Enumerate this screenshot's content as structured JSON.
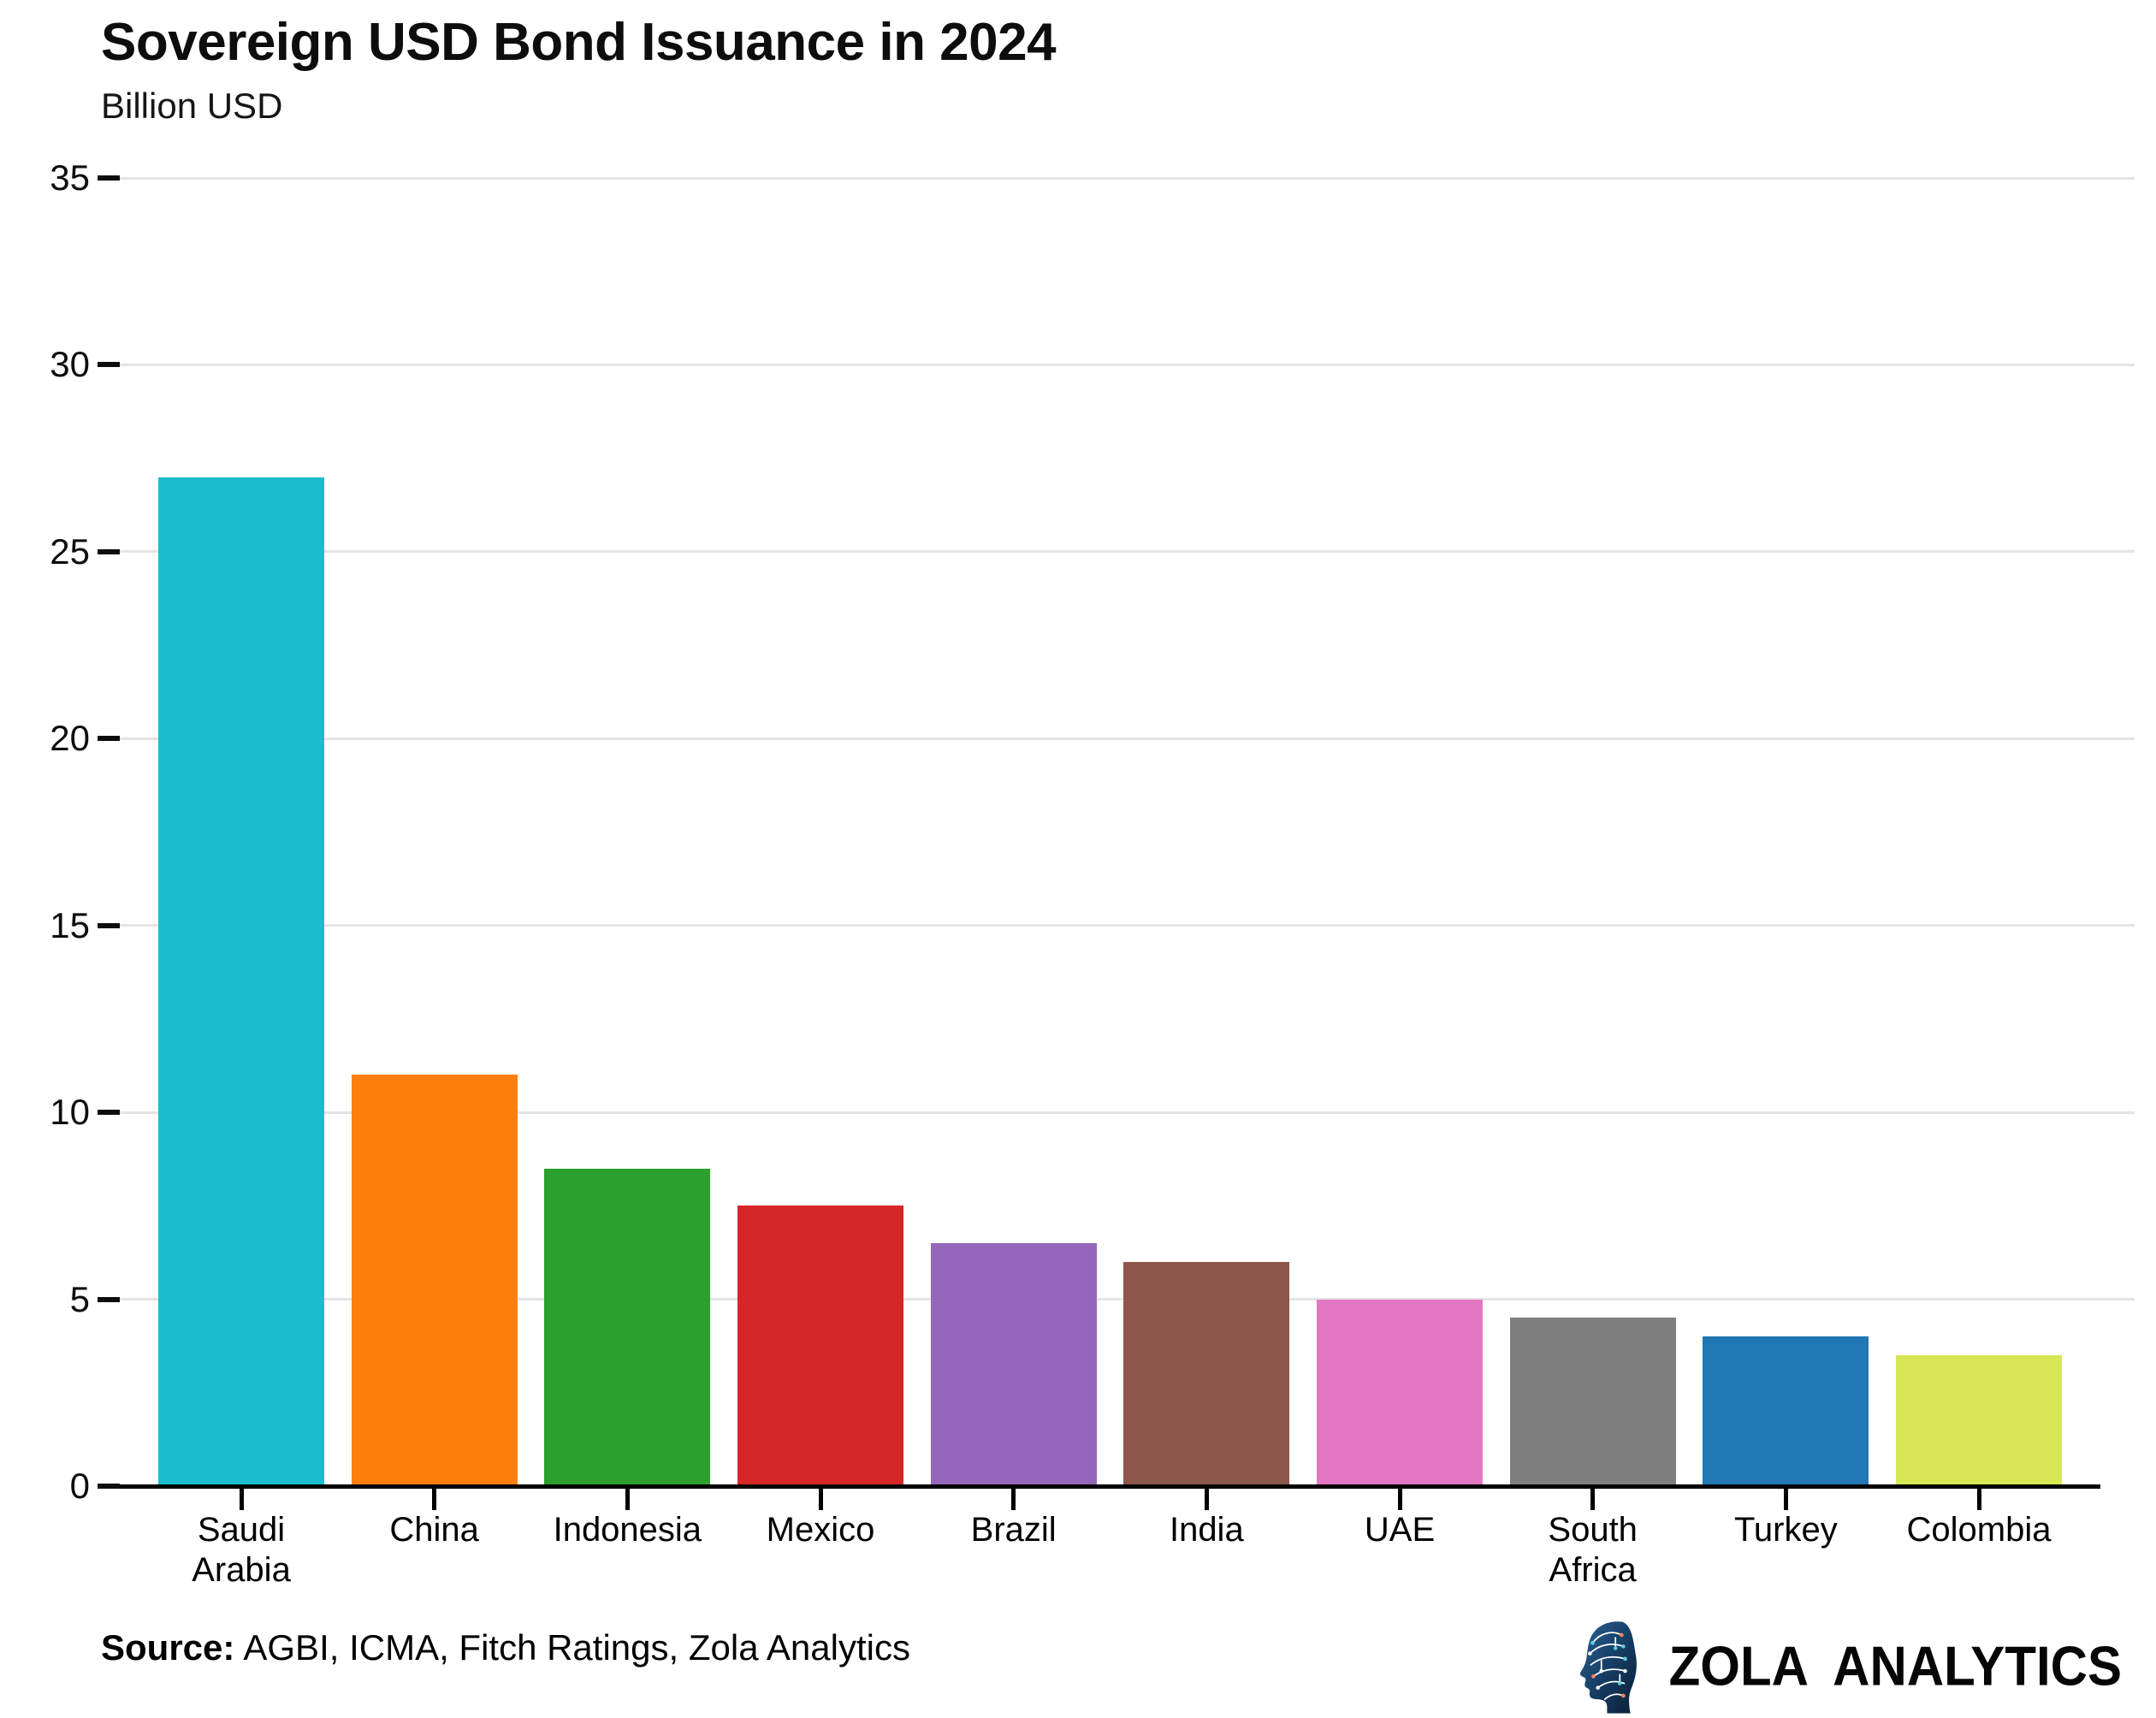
{
  "header": {
    "title": "Sovereign USD Bond Issuance in 2024",
    "subtitle": "Billion USD"
  },
  "footer": {
    "source_label": "Source:",
    "source_text": "AGBI, ICMA, Fitch Ratings, Zola Analytics",
    "brand_name": "ZOLA ANALYTICS",
    "brand_icon": "brain-circuit-head-icon"
  },
  "chart_data": {
    "type": "bar",
    "title": "Sovereign USD Bond Issuance in 2024",
    "ylabel": "Billion USD",
    "categories": [
      "Saudi Arabia",
      "China",
      "Indonesia",
      "Mexico",
      "Brazil",
      "India",
      "UAE",
      "South Africa",
      "Turkey",
      "Colombia"
    ],
    "values": [
      27,
      11,
      8.5,
      7.5,
      6.5,
      6,
      5,
      4.5,
      4,
      3.5
    ],
    "bar_colors": [
      "#1abdce",
      "#ff7f0e",
      "#2ca02c",
      "#d62728",
      "#9467bd",
      "#8c564b",
      "#e377c2",
      "#7f7f7f",
      "#1f77b4",
      "#d7e755"
    ],
    "ylim": [
      0,
      35
    ],
    "yticks": [
      0,
      5,
      10,
      15,
      20,
      25,
      30,
      35
    ],
    "grid": "horizontal",
    "gridline_color": "#e4e4e4",
    "legend": "none"
  }
}
